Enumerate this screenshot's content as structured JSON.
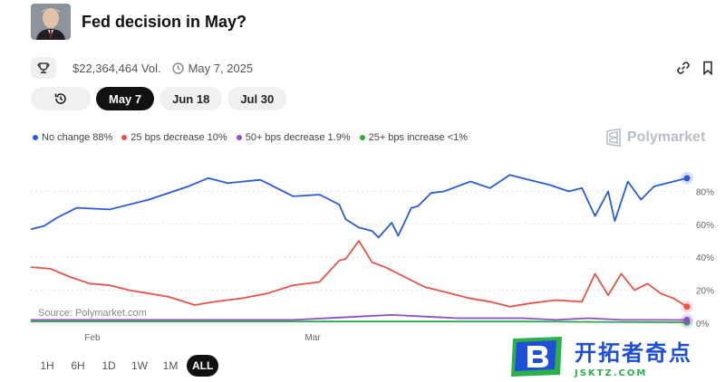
{
  "market": {
    "title": "Fed decision in May?",
    "volume": "$22,364,464 Vol.",
    "date": "May 7, 2025"
  },
  "date_tabs": [
    {
      "label": "May 7",
      "active": true
    },
    {
      "label": "Jun 18",
      "active": false
    },
    {
      "label": "Jul 30",
      "active": false
    }
  ],
  "legend": [
    {
      "label": "No change 88%",
      "color": "#2a5bd7"
    },
    {
      "label": "25 bps decrease 10%",
      "color": "#e5534b"
    },
    {
      "label": "50+ bps decrease 1.9%",
      "color": "#8e4ec6"
    },
    {
      "label": "25+ bps increase <1%",
      "color": "#2aa84a"
    }
  ],
  "brand": "Polymarket",
  "source": "Source: Polymarket.com",
  "ranges": [
    {
      "label": "1H",
      "active": false
    },
    {
      "label": "6H",
      "active": false
    },
    {
      "label": "1D",
      "active": false
    },
    {
      "label": "1W",
      "active": false
    },
    {
      "label": "1M",
      "active": false
    },
    {
      "label": "ALL",
      "active": true
    }
  ],
  "watermark": {
    "cn": "开拓者奇点",
    "en": "JSKTZ.COM"
  },
  "icons": [
    "trophy-icon",
    "clock-icon",
    "link-icon",
    "bookmark-icon",
    "history-icon",
    "polymarket-logo-icon"
  ],
  "chart_data": {
    "type": "line",
    "x_ticks": [
      "Feb",
      "Mar"
    ],
    "y_ticks": [
      "80%",
      "60%",
      "40%",
      "20%",
      "0%"
    ],
    "y_range": [
      0,
      100
    ],
    "series": [
      {
        "name": "No change",
        "color": "#2a5bd7",
        "x": [
          0,
          2,
          4,
          7,
          12,
          18,
          24,
          27,
          30,
          35,
          40,
          44,
          47,
          48,
          50,
          52,
          53,
          55,
          56,
          58,
          59,
          61,
          63,
          67,
          70,
          73,
          76,
          79,
          82,
          84,
          86,
          88,
          89,
          91,
          93,
          95,
          97,
          100
        ],
        "y": [
          57,
          59,
          64,
          70,
          69,
          75,
          83,
          88,
          85,
          87,
          77,
          78,
          72,
          63,
          58,
          56,
          52,
          61,
          53,
          70,
          71,
          79,
          80,
          86,
          82,
          90,
          87,
          84,
          80,
          82,
          65,
          80,
          62,
          86,
          75,
          83,
          85,
          88
        ]
      },
      {
        "name": "25 bps decrease",
        "color": "#e5534b",
        "x": [
          0,
          3,
          6,
          9,
          12,
          15,
          18,
          21,
          25,
          28,
          32,
          36,
          40,
          44,
          47,
          48,
          50,
          52,
          54,
          57,
          60,
          63,
          67,
          70,
          73,
          76,
          80,
          84,
          86,
          88,
          90,
          92,
          94,
          96,
          98,
          100
        ],
        "y": [
          34,
          33,
          28,
          24,
          23,
          20,
          18,
          16,
          11,
          13,
          15,
          18,
          23,
          25,
          38,
          39,
          50,
          37,
          34,
          28,
          22,
          19,
          15,
          13,
          10,
          12,
          14,
          13,
          30,
          17,
          30,
          20,
          24,
          18,
          15,
          10
        ]
      },
      {
        "name": "50+ bps decrease",
        "color": "#8e4ec6",
        "x": [
          0,
          20,
          40,
          50,
          55,
          60,
          65,
          70,
          75,
          80,
          85,
          90,
          95,
          100
        ],
        "y": [
          2,
          2,
          2,
          4,
          5,
          4,
          3,
          3,
          3,
          2,
          3,
          2,
          2,
          1.9
        ]
      },
      {
        "name": "25+ bps increase",
        "color": "#2aa84a",
        "x": [
          0,
          25,
          50,
          75,
          100
        ],
        "y": [
          1,
          1,
          1,
          1,
          0.5
        ]
      }
    ]
  }
}
